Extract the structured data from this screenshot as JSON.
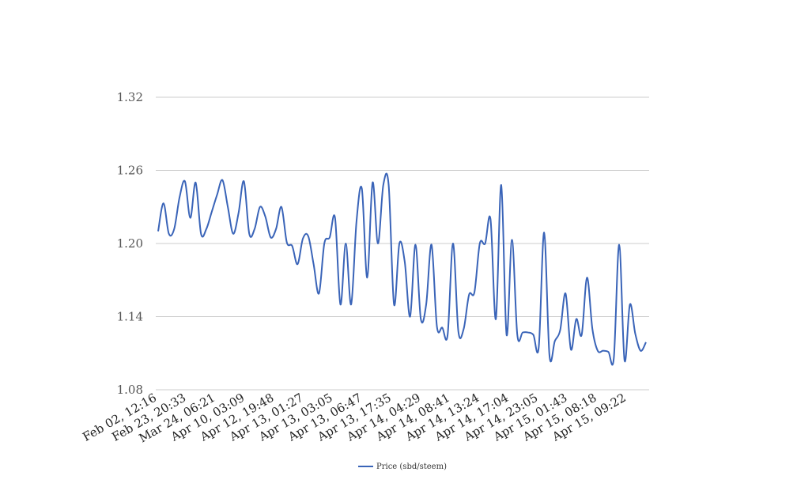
{
  "chart_data": {
    "type": "line",
    "title": "",
    "xlabel": "",
    "ylabel": "",
    "ylim": [
      1.08,
      1.32
    ],
    "yticks": [
      "1.32",
      "1.26",
      "1.20",
      "1.14",
      "1.08"
    ],
    "ytick_values": [
      1.32,
      1.26,
      1.2,
      1.14,
      1.08
    ],
    "xtick_labels": [
      "Feb 02, 12:16",
      "Feb 23, 20:33",
      "Mar 24, 06:21",
      "Apr 10, 03:09",
      "Apr 12, 19:48",
      "Apr 13, 01:27",
      "Apr 13, 03:05",
      "Apr 13, 06:47",
      "Apr 13, 17:35",
      "Apr 14, 04:29",
      "Apr 14, 08:41",
      "Apr 14, 13:24",
      "Apr 14, 17:04",
      "Apr 14, 23:05",
      "Apr 15, 01:43",
      "Apr 15, 08:18",
      "Apr 15, 09:22"
    ],
    "grid": true,
    "legend_position": "bottom",
    "series": [
      {
        "name": "Price (sbd/steem)",
        "color": "#3a64b8",
        "values": [
          1.21,
          1.233,
          1.208,
          1.212,
          1.238,
          1.251,
          1.221,
          1.25,
          1.208,
          1.212,
          1.226,
          1.24,
          1.252,
          1.23,
          1.208,
          1.225,
          1.251,
          1.208,
          1.212,
          1.23,
          1.222,
          1.205,
          1.212,
          1.23,
          1.201,
          1.198,
          1.183,
          1.204,
          1.206,
          1.183,
          1.159,
          1.2,
          1.205,
          1.221,
          1.15,
          1.2,
          1.15,
          1.218,
          1.245,
          1.172,
          1.25,
          1.2,
          1.248,
          1.248,
          1.15,
          1.2,
          1.185,
          1.14,
          1.199,
          1.138,
          1.15,
          1.199,
          1.132,
          1.131,
          1.125,
          1.2,
          1.128,
          1.13,
          1.158,
          1.16,
          1.2,
          1.2,
          1.22,
          1.138,
          1.248,
          1.125,
          1.203,
          1.125,
          1.127,
          1.127,
          1.125,
          1.115,
          1.209,
          1.108,
          1.12,
          1.129,
          1.159,
          1.113,
          1.138,
          1.125,
          1.172,
          1.13,
          1.112,
          1.112,
          1.111,
          1.106,
          1.199,
          1.104,
          1.15,
          1.126,
          1.112,
          1.119
        ]
      }
    ]
  }
}
